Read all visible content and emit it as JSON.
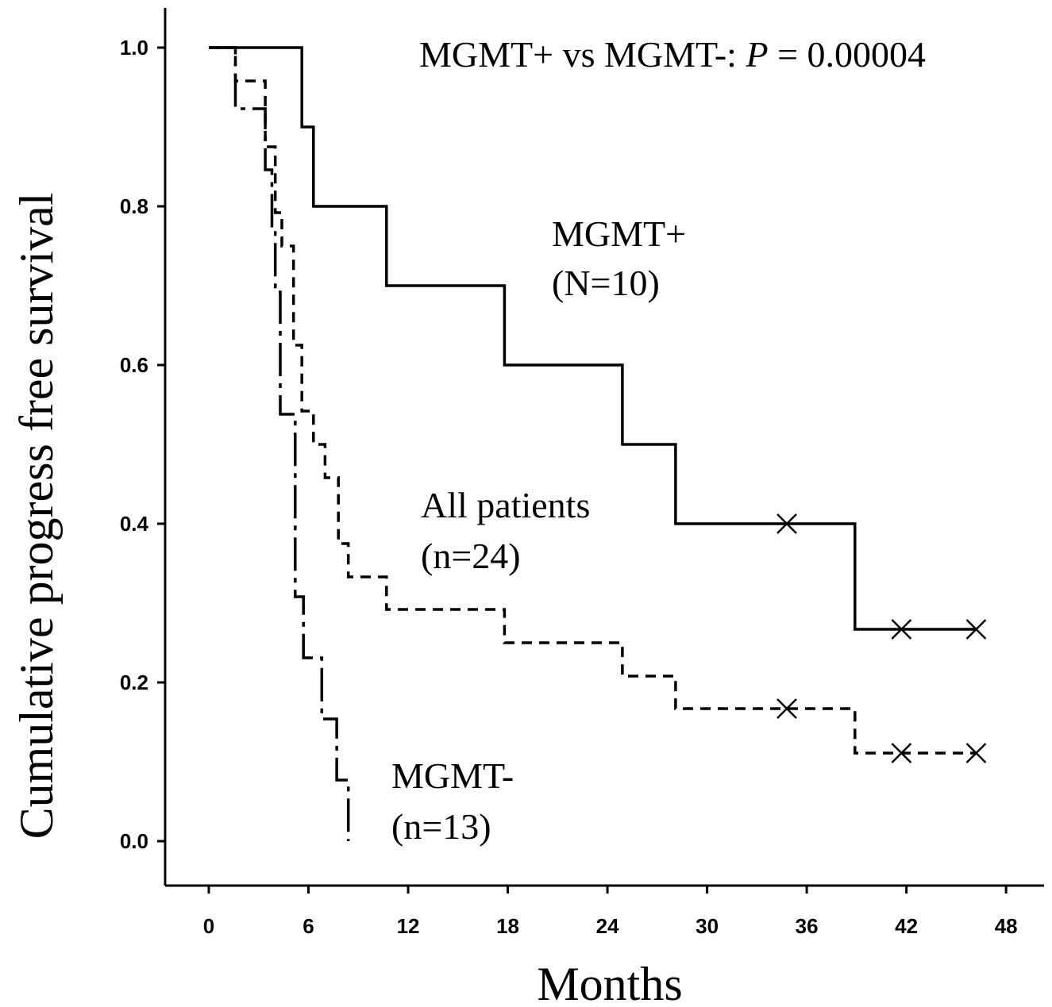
{
  "chart_data": {
    "type": "line",
    "subtype": "kaplan-meier step",
    "title": "",
    "xlabel": "Months",
    "ylabel": "Cumulative progress free survival",
    "xlim": [
      -2,
      48.5
    ],
    "ylim": [
      -0.055,
      1.05
    ],
    "xticks": [
      0,
      6,
      12,
      18,
      24,
      30,
      36,
      42,
      48
    ],
    "yticks": [
      0.0,
      0.2,
      0.4,
      0.6,
      0.8,
      1.0
    ],
    "ytick_labels": [
      "0.0",
      "0.2",
      "0.4",
      "0.6",
      "0.8",
      "1.0"
    ],
    "grid": false,
    "annotation": {
      "prefix": "MGMT+ vs MGMT-: ",
      "p_symbol": "P",
      "suffix": " = 0.00004"
    },
    "series": [
      {
        "name": "MGMT+",
        "n_label": "(N=10)",
        "line_style": "solid",
        "x": [
          0,
          5.6,
          5.6,
          6.3,
          6.3,
          10.7,
          10.7,
          17.8,
          17.8,
          24.9,
          24.9,
          28.1,
          28.1,
          38.9,
          38.9,
          46.2
        ],
        "y": [
          1.0,
          1.0,
          0.9,
          0.9,
          0.8,
          0.8,
          0.7,
          0.7,
          0.6,
          0.6,
          0.5,
          0.5,
          0.4,
          0.4,
          0.267,
          0.267
        ],
        "censored": [
          {
            "x": 34.8,
            "y": 0.4
          },
          {
            "x": 41.7,
            "y": 0.267
          },
          {
            "x": 46.2,
            "y": 0.267
          }
        ]
      },
      {
        "name": "All patients",
        "n_label": "(n=24)",
        "line_style": "dashed",
        "x": [
          0,
          1.6,
          1.6,
          3.4,
          3.4,
          4.0,
          4.0,
          4.4,
          4.4,
          5.1,
          5.1,
          5.6,
          5.6,
          6.3,
          6.3,
          7.0,
          7.0,
          7.8,
          7.8,
          8.4,
          8.4,
          10.7,
          10.7,
          17.8,
          17.8,
          24.9,
          24.9,
          28.1,
          28.1,
          38.9,
          38.9,
          46.2
        ],
        "y": [
          1.0,
          1.0,
          0.958,
          0.958,
          0.875,
          0.875,
          0.792,
          0.792,
          0.75,
          0.75,
          0.625,
          0.625,
          0.542,
          0.542,
          0.5,
          0.5,
          0.458,
          0.458,
          0.375,
          0.375,
          0.333,
          0.333,
          0.292,
          0.292,
          0.25,
          0.25,
          0.208,
          0.208,
          0.167,
          0.167,
          0.111,
          0.111
        ],
        "censored": [
          {
            "x": 34.8,
            "y": 0.167
          },
          {
            "x": 41.7,
            "y": 0.111
          },
          {
            "x": 46.2,
            "y": 0.111
          }
        ]
      },
      {
        "name": "MGMT-",
        "n_label": "(n=13)",
        "line_style": "dash-dot",
        "x": [
          0,
          1.6,
          1.6,
          3.4,
          3.4,
          3.8,
          3.8,
          4.0,
          4.0,
          4.3,
          4.3,
          5.2,
          5.2,
          5.7,
          5.7,
          6.8,
          6.8,
          7.7,
          7.7,
          8.4,
          8.4
        ],
        "y": [
          1.0,
          1.0,
          0.923,
          0.923,
          0.846,
          0.846,
          0.769,
          0.769,
          0.692,
          0.692,
          0.538,
          0.538,
          0.308,
          0.308,
          0.231,
          0.231,
          0.154,
          0.154,
          0.077,
          0.077,
          0.0
        ]
      }
    ]
  }
}
